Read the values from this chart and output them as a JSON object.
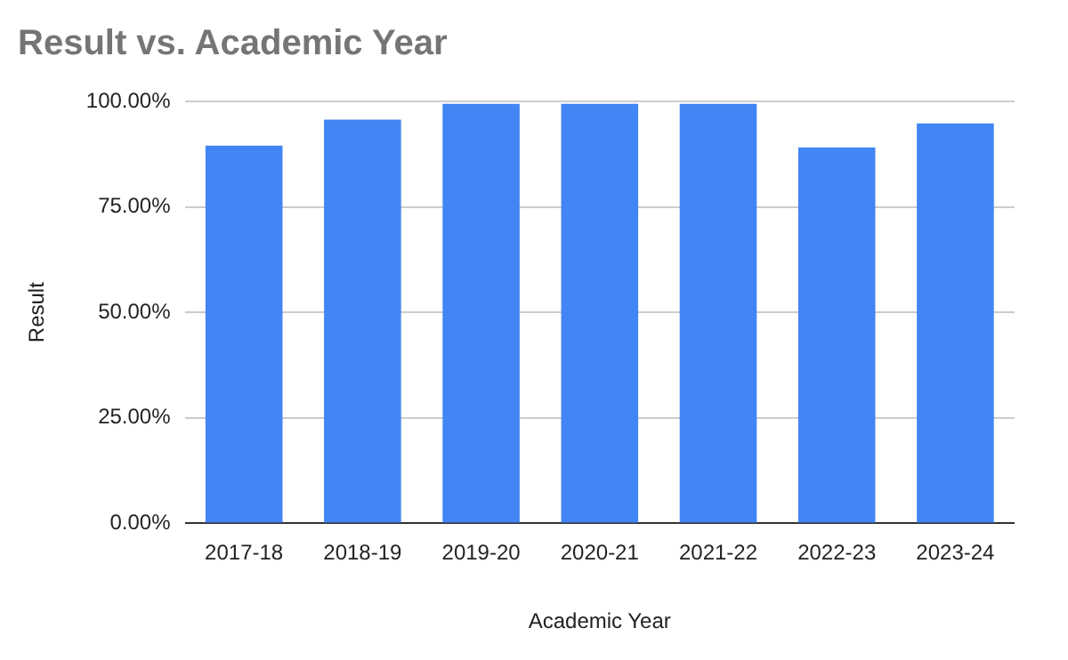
{
  "chart_data": {
    "type": "bar",
    "title": "Result vs. Academic Year",
    "xlabel": "Academic Year",
    "ylabel": "Result",
    "categories": [
      "2017-18",
      "2018-19",
      "2019-20",
      "2020-21",
      "2021-22",
      "2022-23",
      "2023-24"
    ],
    "values": [
      89.5,
      95.7,
      99.4,
      99.4,
      99.4,
      89.1,
      94.8
    ],
    "color": "#4285f4",
    "ylim": [
      0,
      100
    ],
    "yticks": [
      {
        "value": 0,
        "label": "0.00%"
      },
      {
        "value": 25,
        "label": "25.00%"
      },
      {
        "value": 50,
        "label": "50.00%"
      },
      {
        "value": 75,
        "label": "75.00%"
      },
      {
        "value": 100,
        "label": "100.00%"
      }
    ],
    "grid": "y",
    "legend": false
  }
}
